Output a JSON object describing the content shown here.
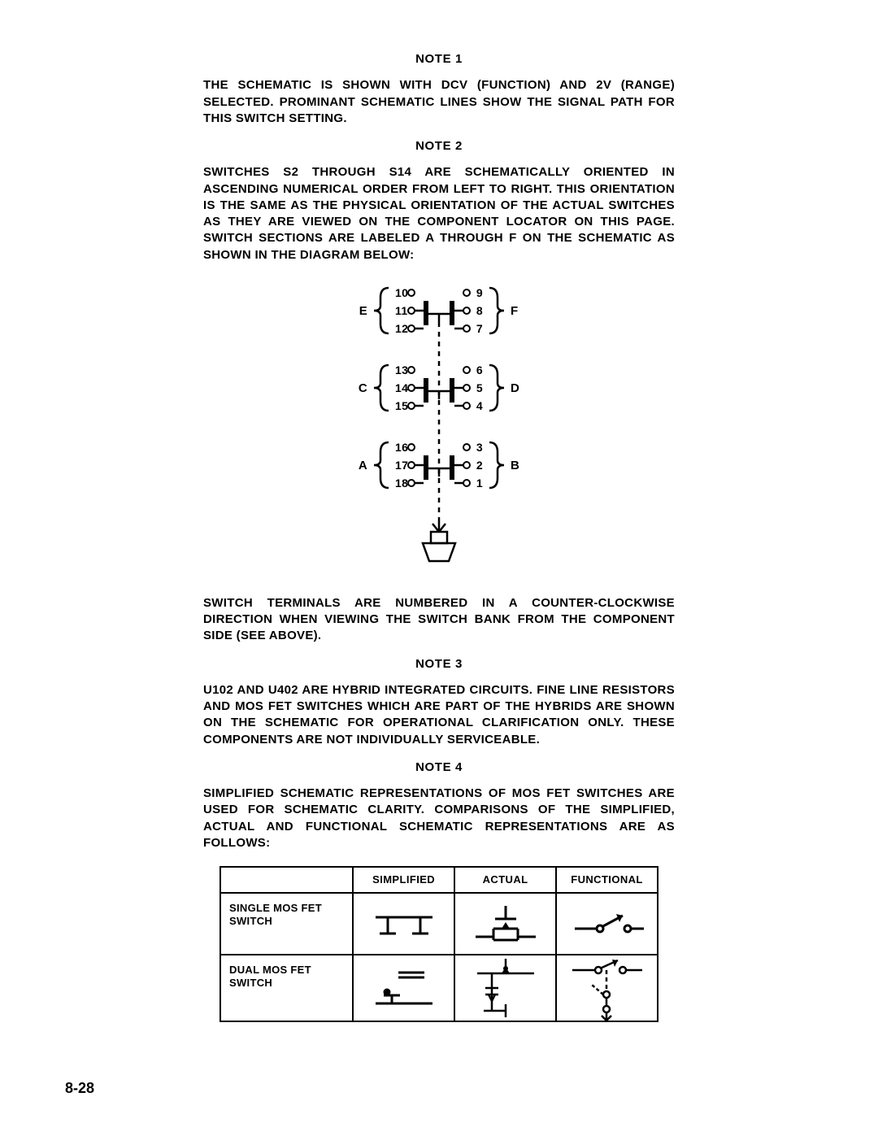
{
  "notes": {
    "n1": {
      "heading": "NOTE 1",
      "body": "THE SCHEMATIC IS SHOWN WITH DCV (FUNCTION) AND 2V (RANGE) SELECTED. PROMINANT SCHEMATIC LINES SHOW THE SIGNAL PATH FOR THIS SWITCH SETTING."
    },
    "n2": {
      "heading": "NOTE 2",
      "body": "SWITCHES S2 THROUGH S14 ARE SCHEMATICALLY ORIENTED IN ASCENDING NUMERICAL ORDER FROM LEFT TO RIGHT. THIS ORIENTATION IS THE SAME AS THE PHYSICAL ORIENTATION OF THE ACTUAL SWITCHES AS THEY ARE VIEWED ON THE COMPONENT LOCATOR ON THIS PAGE. SWITCH SECTIONS ARE LABELED A THROUGH F ON THE SCHEMATIC AS SHOWN IN THE DIAGRAM BELOW:",
      "after": "SWITCH TERMINALS ARE NUMBERED IN A COUNTER-CLOCKWISE DIRECTION WHEN VIEWING THE SWITCH BANK FROM THE COMPONENT SIDE (SEE ABOVE)."
    },
    "n3": {
      "heading": "NOTE 3",
      "body": "U102 AND U402 ARE HYBRID INTEGRATED CIRCUITS. FINE LINE RESISTORS AND MOS FET SWITCHES WHICH ARE PART OF THE HYBRIDS ARE SHOWN ON THE SCHEMATIC FOR OPERATIONAL CLARIFICATION ONLY. THESE COMPONENTS ARE NOT INDIVIDUALLY SERVICEABLE."
    },
    "n4": {
      "heading": "NOTE 4",
      "body": "SIMPLIFIED SCHEMATIC REPRESENTATIONS OF MOS FET SWITCHES ARE USED FOR SCHEMATIC CLARITY. COMPARISONS OF THE SIMPLIFIED, ACTUAL AND FUNCTIONAL SCHEMATIC REPRESENTATIONS ARE AS FOLLOWS:"
    }
  },
  "switch_diagram": {
    "type": "diagram",
    "stroke": "#000000",
    "fill": "#ffffff",
    "text_color": "#000000",
    "font_size": 14,
    "sections": [
      {
        "left_label": "E",
        "right_label": "F",
        "left_pins": [
          "10",
          "11",
          "12"
        ],
        "right_pins": [
          "9",
          "8",
          "7"
        ]
      },
      {
        "left_label": "C",
        "right_label": "D",
        "left_pins": [
          "13",
          "14",
          "15"
        ],
        "right_pins": [
          "6",
          "5",
          "4"
        ]
      },
      {
        "left_label": "A",
        "right_label": "B",
        "left_pins": [
          "16",
          "17",
          "18"
        ],
        "right_pins": [
          "3",
          "2",
          "1"
        ]
      }
    ]
  },
  "table": {
    "headers": [
      "",
      "SIMPLIFIED",
      "ACTUAL",
      "FUNCTIONAL"
    ],
    "rows": [
      {
        "label": "SINGLE MOS FET SWITCH"
      },
      {
        "label": "DUAL MOS FET SWITCH"
      }
    ],
    "border_color": "#000000",
    "header_fontsize": 13,
    "label_fontsize": 13
  },
  "page_number": "8-28",
  "colors": {
    "background": "#ffffff",
    "text": "#000000",
    "line": "#000000"
  }
}
